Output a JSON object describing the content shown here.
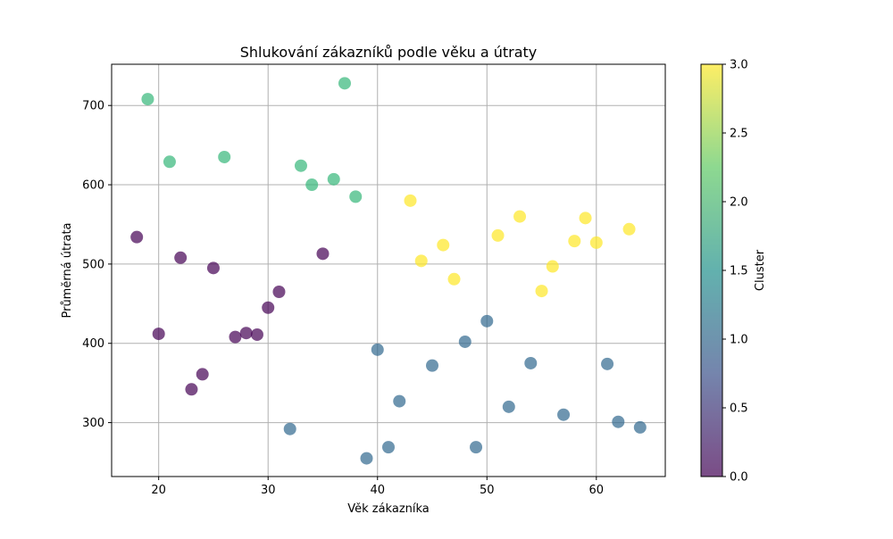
{
  "chart_data": {
    "type": "scatter",
    "title": "Shlukování zákazníků podle věku a útraty",
    "xlabel": "Věk zákazníka",
    "ylabel": "Průměrná útrata",
    "xlim": [
      15.7,
      66.3
    ],
    "ylim": [
      232,
      752
    ],
    "xticks": [
      20,
      30,
      40,
      50,
      60
    ],
    "yticks": [
      300,
      400,
      500,
      600,
      700
    ],
    "grid": true,
    "colorbar": {
      "label": "Cluster",
      "range": [
        0,
        3
      ],
      "ticks": [
        "0.0",
        "0.5",
        "1.0",
        "1.5",
        "2.0",
        "2.5",
        "3.0"
      ],
      "colors": [
        "#440154",
        "#3b528b",
        "#21918c",
        "#5ec962",
        "#fde725"
      ]
    },
    "clusters": [
      {
        "cluster": 0,
        "color": "#440154",
        "points": [
          [
            18,
            534
          ],
          [
            20,
            412
          ],
          [
            22,
            508
          ],
          [
            23,
            342
          ],
          [
            24,
            361
          ],
          [
            25,
            495
          ],
          [
            27,
            408
          ],
          [
            28,
            413
          ],
          [
            29,
            411
          ],
          [
            30,
            445
          ],
          [
            31,
            465
          ],
          [
            35,
            513
          ]
        ]
      },
      {
        "cluster": 1,
        "color": "#31688e",
        "points": [
          [
            32,
            292
          ],
          [
            39,
            255
          ],
          [
            40,
            392
          ],
          [
            41,
            269
          ],
          [
            42,
            327
          ],
          [
            45,
            372
          ],
          [
            48,
            402
          ],
          [
            49,
            269
          ],
          [
            50,
            428
          ],
          [
            52,
            320
          ],
          [
            54,
            375
          ],
          [
            57,
            310
          ],
          [
            61,
            374
          ],
          [
            62,
            301
          ],
          [
            64,
            294
          ]
        ]
      },
      {
        "cluster": 2,
        "color": "#35b779",
        "points": [
          [
            19,
            708
          ],
          [
            21,
            629
          ],
          [
            26,
            635
          ],
          [
            33,
            624
          ],
          [
            34,
            600
          ],
          [
            36,
            607
          ],
          [
            37,
            728
          ],
          [
            38,
            585
          ]
        ]
      },
      {
        "cluster": 3,
        "color": "#fde725",
        "points": [
          [
            43,
            580
          ],
          [
            44,
            504
          ],
          [
            46,
            524
          ],
          [
            47,
            481
          ],
          [
            51,
            536
          ],
          [
            53,
            560
          ],
          [
            55,
            466
          ],
          [
            56,
            497
          ],
          [
            58,
            529
          ],
          [
            59,
            558
          ],
          [
            60,
            527
          ],
          [
            63,
            544
          ]
        ]
      }
    ]
  }
}
